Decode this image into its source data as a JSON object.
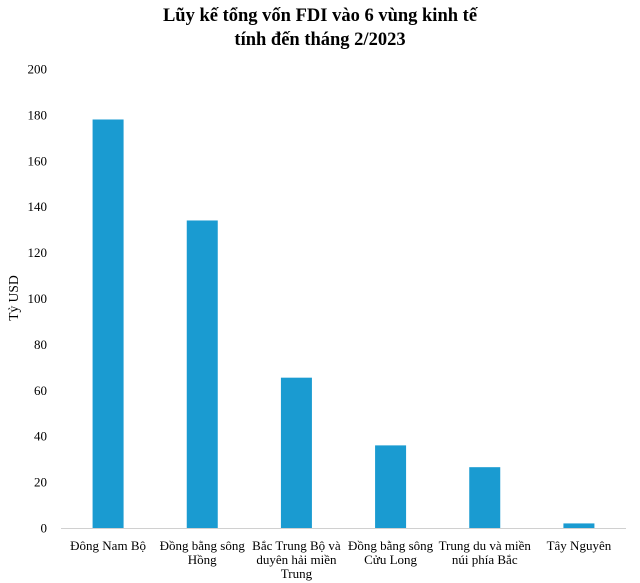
{
  "chart_data": {
    "type": "bar",
    "title_lines": [
      "Lũy kế tổng vốn FDI vào 6 vùng kinh tế",
      "tính đến tháng 2/2023"
    ],
    "ylabel": "Tỷ USD",
    "xlabel": "",
    "ylim": [
      0,
      200
    ],
    "yticks": [
      0,
      20,
      40,
      60,
      80,
      100,
      120,
      140,
      160,
      180,
      200
    ],
    "categories": [
      [
        "Đông Nam Bộ"
      ],
      [
        "Đồng bằng sông",
        "Hồng"
      ],
      [
        "Bắc Trung Bộ và",
        "duyên hải miền",
        "Trung"
      ],
      [
        "Đồng bằng sông",
        "Cửu Long"
      ],
      [
        "Trung du và miền",
        "núi phía Bắc"
      ],
      [
        "Tây Nguyên"
      ]
    ],
    "values": [
      178,
      134,
      65.5,
      36,
      26.5,
      2
    ],
    "bar_color": "#1a9bd1",
    "axis_color": "#d0d0d0",
    "grid": false,
    "legend": "none"
  }
}
